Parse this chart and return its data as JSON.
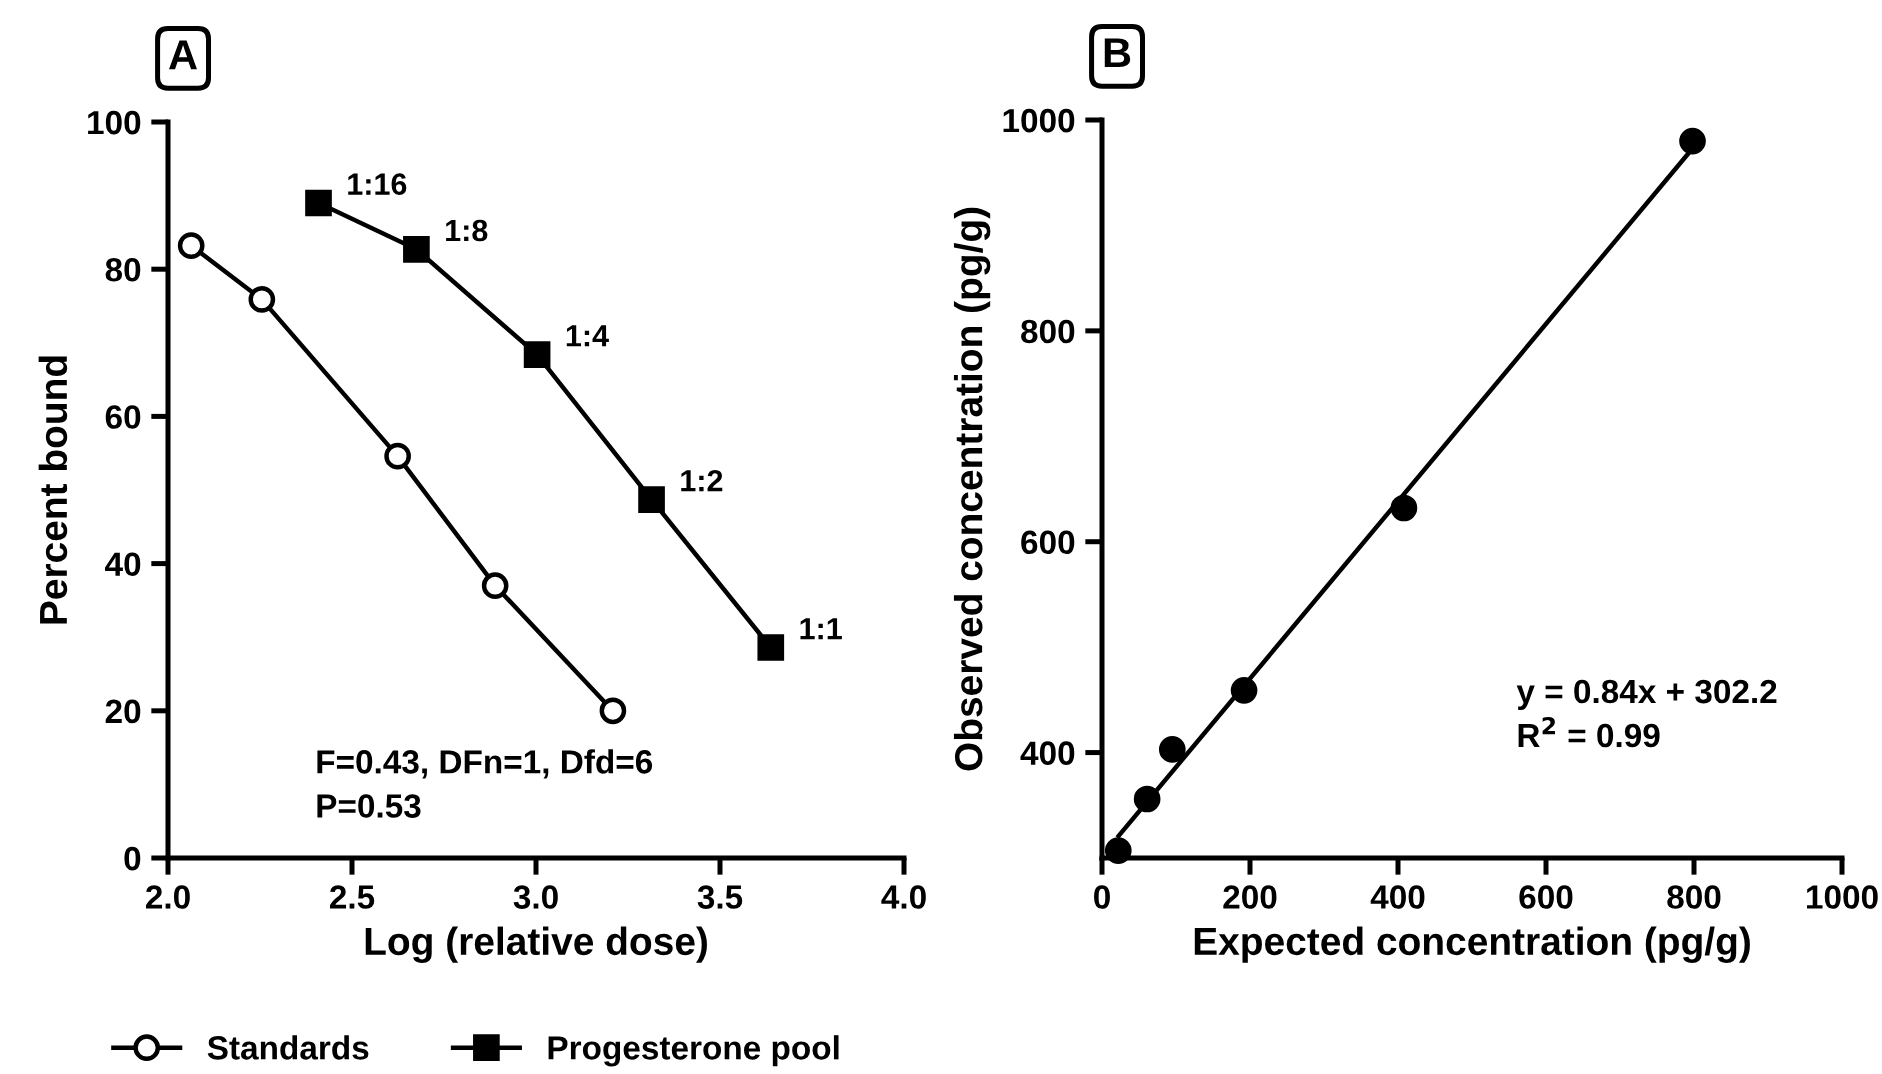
{
  "chart_data": [
    {
      "type": "line",
      "title": "A",
      "xlabel": "Log (relative dose)",
      "ylabel": "Percent bound",
      "xlim": [
        2.0,
        4.0
      ],
      "xticks": [
        {
          "value": 2.0,
          "label": "2.0"
        },
        {
          "value": 2.5,
          "label": "2.5"
        },
        {
          "value": 3.0,
          "label": "3.0"
        },
        {
          "value": 3.5,
          "label": "3.5"
        },
        {
          "value": 4.0,
          "label": "4.0"
        }
      ],
      "ylim": [
        0,
        100
      ],
      "yticks": [
        0,
        20,
        40,
        60,
        80,
        100
      ],
      "grid": false,
      "legend": "bottom",
      "line_style": "solid",
      "series": [
        {
          "name": "Standards",
          "color": "#000000",
          "marker": "circle",
          "x": [
            2.063,
            2.255,
            2.624,
            2.889,
            3.209
          ],
          "values": [
            83.2,
            75.9,
            54.6,
            37.0,
            20.0
          ]
        },
        {
          "name": "Progesterone pool",
          "color": "#000000",
          "marker": "square",
          "x": [
            2.409,
            2.675,
            3.003,
            3.314,
            3.638
          ],
          "values": [
            89.0,
            82.7,
            68.4,
            48.7,
            28.6
          ]
        }
      ],
      "annotations": [
        {
          "text": "1:16",
          "x": 2.409,
          "y": 89.0
        },
        {
          "text": "1:8",
          "x": 2.675,
          "y": 82.7
        },
        {
          "text": "1:4",
          "x": 3.003,
          "y": 68.4
        },
        {
          "text": "1:2",
          "x": 3.314,
          "y": 48.7
        },
        {
          "text": "1:1",
          "x": 3.638,
          "y": 28.6
        },
        "F=0.43, DFn=1, Dfd=6",
        "P=0.53"
      ]
    },
    {
      "type": "scatter",
      "title": "B",
      "xlabel": "Expected concentration (pg/g)",
      "ylabel": "Observed concentration (pg/g)",
      "xlim": [
        0,
        1000
      ],
      "xticks": [
        0,
        200,
        400,
        600,
        800,
        1000
      ],
      "ylim": [
        300,
        1000
      ],
      "yticks": [
        400,
        600,
        800,
        1000
      ],
      "grid": false,
      "legend": false,
      "series": [
        {
          "color": "#000000",
          "marker": "circle",
          "x": [
            22,
            61,
            95,
            192,
            408,
            798
          ],
          "values": [
            307,
            356,
            403,
            459,
            632,
            980
          ]
        },
        {
          "type": "line",
          "color": "#000000",
          "marker": "none",
          "x": [
            22.5,
            798
          ],
          "values": [
            321,
            973
          ]
        }
      ],
      "annotations": [
        "y = 0.84x + 302.2",
        "R$^{2}$ = 0.99"
      ]
    }
  ]
}
